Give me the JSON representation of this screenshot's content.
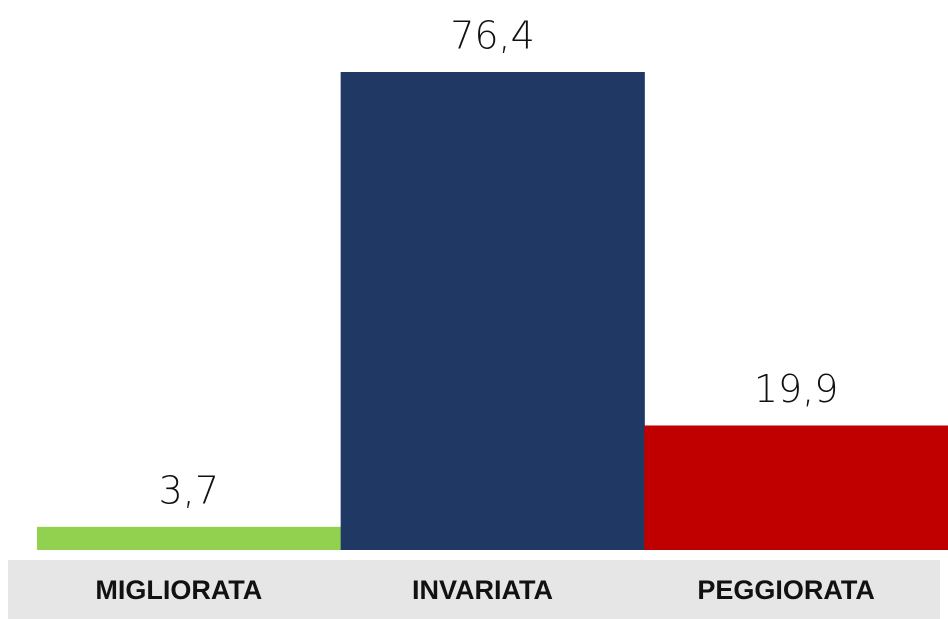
{
  "chart_data": {
    "type": "bar",
    "categories": [
      "MIGLIORATA",
      "INVARIATA",
      "PEGGIORATA"
    ],
    "values": [
      3.7,
      76.4,
      19.9
    ],
    "value_labels": [
      "3,7",
      "76,4",
      "19,9"
    ],
    "colors": [
      "#92d050",
      "#203864",
      "#c00000"
    ]
  }
}
